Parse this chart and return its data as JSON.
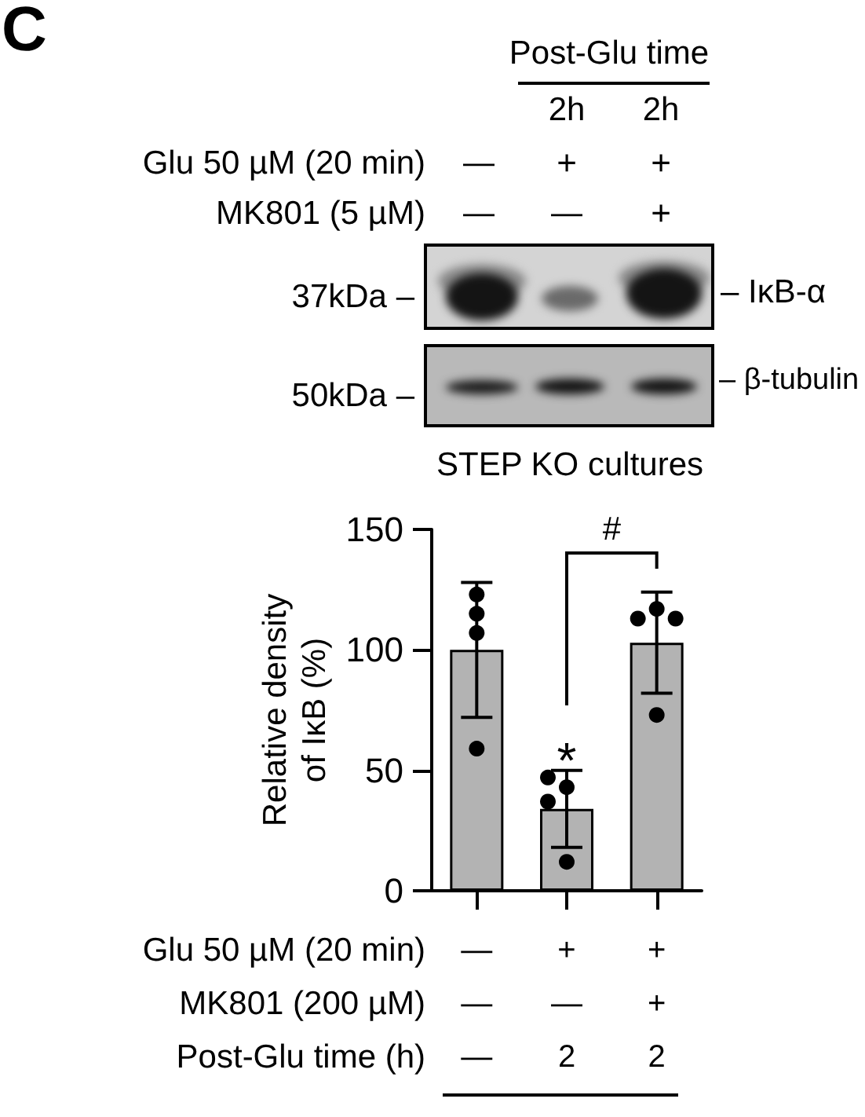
{
  "chart_data": {
    "type": "bar",
    "categories": [
      "—\n—\n—",
      "+\n—\n2",
      "+\n+\n2"
    ],
    "ylabel": "Relative density of IκB (%)",
    "ylim": [
      0,
      150
    ],
    "yticks": [
      0,
      50,
      100,
      150
    ],
    "grid": false,
    "series": [
      {
        "color": "#b3b3b3",
        "values": [
          100,
          34,
          103
        ],
        "errors": [
          28,
          16,
          21
        ]
      },
      {
        "type": "scatter",
        "color": "#000000",
        "marker": "circle",
        "x": [
          "—\n—\n—",
          "—\n—\n—",
          "—\n—\n—",
          "—\n—\n—",
          "+\n—\n2",
          "+\n—\n2",
          "+\n—\n2",
          "+\n—\n2",
          "+\n+\n2",
          "+\n+\n2",
          "+\n+\n2",
          "+\n+\n2"
        ],
        "values": [
          123,
          115,
          107,
          59,
          43,
          47,
          37,
          12,
          117,
          113,
          113,
          73
        ]
      }
    ],
    "annotations": [
      "C",
      "Post-Glu time",
      "2h",
      "2h",
      "Glu 50 µM (20 min)",
      "—",
      "+",
      "+",
      "MK801 (5 µM)",
      "—",
      "—",
      "+",
      "37kDa –",
      "– IκB-α",
      "50kDa –",
      "– β-tubulin",
      "STEP KO cultures",
      "*",
      "#",
      "Glu 50 µM (20 min)",
      "MK801 (200 µM)",
      "Post-Glu time (h)"
    ]
  }
}
